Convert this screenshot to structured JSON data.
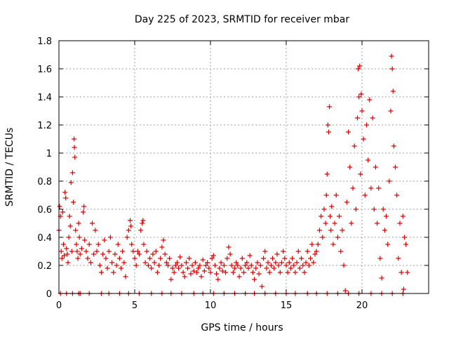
{
  "chart_data": {
    "type": "scatter",
    "title": "Day 225 of 2023, SRMTID for receiver mbar",
    "xlabel": "GPS time / hours",
    "ylabel": "SRMTID / TECUs",
    "xlim": [
      0,
      24.4
    ],
    "ylim": [
      0,
      1.8
    ],
    "xticks": [
      0,
      5,
      10,
      15,
      20
    ],
    "xtick_labels": [
      "0",
      "5",
      "10",
      "15",
      "20"
    ],
    "yticks": [
      0,
      0.2,
      0.4,
      0.6,
      0.8,
      1.0,
      1.2,
      1.4,
      1.6,
      1.8
    ],
    "ytick_labels": [
      "0",
      "0.2",
      "0.4",
      "0.6",
      "0.8",
      "1",
      "1.2",
      "1.4",
      "1.6",
      "1.8"
    ],
    "grid": true,
    "marker": "+",
    "color": "#e00000",
    "series": [
      {
        "name": "SRMTID",
        "points": [
          [
            0.0,
            0.45
          ],
          [
            0.05,
            0.62
          ],
          [
            0.1,
            0.55
          ],
          [
            0.15,
            0.3
          ],
          [
            0.2,
            0.25
          ],
          [
            0.25,
            0.58
          ],
          [
            0.3,
            0.35
          ],
          [
            0.35,
            0.27
          ],
          [
            0.4,
            0.72
          ],
          [
            0.45,
            0.68
          ],
          [
            0.5,
            0.32
          ],
          [
            0.55,
            0.28
          ],
          [
            0.6,
            0.22
          ],
          [
            0.65,
            0.4
          ],
          [
            0.7,
            0.55
          ],
          [
            0.75,
            0.48
          ],
          [
            0.8,
            0.79
          ],
          [
            0.85,
            0.3
          ],
          [
            0.9,
            0.86
          ],
          [
            0.95,
            0.65
          ],
          [
            1.0,
            1.1
          ],
          [
            1.02,
            1.04
          ],
          [
            1.05,
            0.97
          ],
          [
            1.1,
            0.45
          ],
          [
            1.15,
            0.35
          ],
          [
            1.2,
            0.3
          ],
          [
            1.25,
            0.25
          ],
          [
            1.3,
            0.5
          ],
          [
            1.35,
            0.4
          ],
          [
            1.4,
            0.28
          ],
          [
            1.5,
            0.32
          ],
          [
            1.6,
            0.58
          ],
          [
            1.65,
            0.62
          ],
          [
            1.7,
            0.38
          ],
          [
            1.8,
            0.3
          ],
          [
            1.9,
            0.25
          ],
          [
            2.0,
            0.35
          ],
          [
            2.1,
            0.22
          ],
          [
            2.2,
            0.5
          ],
          [
            2.3,
            0.28
          ],
          [
            2.4,
            0.45
          ],
          [
            2.5,
            0.3
          ],
          [
            2.6,
            0.35
          ],
          [
            2.7,
            0.2
          ],
          [
            2.8,
            0.15
          ],
          [
            2.9,
            0.28
          ],
          [
            3.0,
            0.38
          ],
          [
            3.1,
            0.25
          ],
          [
            3.2,
            0.18
          ],
          [
            3.3,
            0.3
          ],
          [
            3.4,
            0.4
          ],
          [
            3.5,
            0.22
          ],
          [
            3.6,
            0.15
          ],
          [
            3.7,
            0.28
          ],
          [
            3.8,
            0.2
          ],
          [
            3.9,
            0.35
          ],
          [
            4.0,
            0.25
          ],
          [
            4.1,
            0.18
          ],
          [
            4.2,
            0.3
          ],
          [
            4.3,
            0.22
          ],
          [
            4.4,
            0.12
          ],
          [
            4.5,
            0.4
          ],
          [
            4.6,
            0.45
          ],
          [
            4.7,
            0.52
          ],
          [
            4.75,
            0.48
          ],
          [
            4.8,
            0.35
          ],
          [
            4.9,
            0.3
          ],
          [
            5.0,
            0.25
          ],
          [
            5.1,
            0.2
          ],
          [
            5.2,
            0.3
          ],
          [
            5.3,
            0.28
          ],
          [
            5.4,
            0.45
          ],
          [
            5.5,
            0.5
          ],
          [
            5.55,
            0.52
          ],
          [
            5.6,
            0.35
          ],
          [
            5.7,
            0.22
          ],
          [
            5.8,
            0.3
          ],
          [
            5.9,
            0.2
          ],
          [
            6.0,
            0.25
          ],
          [
            6.1,
            0.18
          ],
          [
            6.2,
            0.28
          ],
          [
            6.3,
            0.22
          ],
          [
            6.4,
            0.3
          ],
          [
            6.5,
            0.15
          ],
          [
            6.6,
            0.2
          ],
          [
            6.7,
            0.25
          ],
          [
            6.8,
            0.33
          ],
          [
            6.9,
            0.38
          ],
          [
            7.0,
            0.28
          ],
          [
            7.1,
            0.22
          ],
          [
            7.2,
            0.2
          ],
          [
            7.3,
            0.25
          ],
          [
            7.4,
            0.1
          ],
          [
            7.5,
            0.18
          ],
          [
            7.6,
            0.15
          ],
          [
            7.7,
            0.2
          ],
          [
            7.8,
            0.22
          ],
          [
            7.9,
            0.18
          ],
          [
            8.0,
            0.26
          ],
          [
            8.1,
            0.2
          ],
          [
            8.2,
            0.15
          ],
          [
            8.3,
            0.12
          ],
          [
            8.4,
            0.22
          ],
          [
            8.5,
            0.18
          ],
          [
            8.6,
            0.25
          ],
          [
            8.7,
            0.14
          ],
          [
            8.8,
            0.2
          ],
          [
            8.9,
            0.16
          ],
          [
            9.0,
            0.22
          ],
          [
            9.1,
            0.15
          ],
          [
            9.2,
            0.18
          ],
          [
            9.3,
            0.2
          ],
          [
            9.4,
            0.12
          ],
          [
            9.5,
            0.24
          ],
          [
            9.6,
            0.16
          ],
          [
            9.7,
            0.2
          ],
          [
            9.8,
            0.22
          ],
          [
            9.9,
            0.18
          ],
          [
            10.0,
            0.15
          ],
          [
            10.1,
            0.25
          ],
          [
            10.2,
            0.27
          ],
          [
            10.3,
            0.2
          ],
          [
            10.4,
            0.14
          ],
          [
            10.5,
            0.1
          ],
          [
            10.6,
            0.18
          ],
          [
            10.7,
            0.22
          ],
          [
            10.8,
            0.16
          ],
          [
            10.9,
            0.2
          ],
          [
            11.0,
            0.15
          ],
          [
            11.1,
            0.25
          ],
          [
            11.2,
            0.33
          ],
          [
            11.3,
            0.28
          ],
          [
            11.4,
            0.2
          ],
          [
            11.5,
            0.15
          ],
          [
            11.6,
            0.18
          ],
          [
            11.7,
            0.22
          ],
          [
            11.8,
            0.2
          ],
          [
            11.9,
            0.12
          ],
          [
            12.0,
            0.18
          ],
          [
            12.1,
            0.25
          ],
          [
            12.2,
            0.15
          ],
          [
            12.3,
            0.2
          ],
          [
            12.4,
            0.22
          ],
          [
            12.5,
            0.18
          ],
          [
            12.6,
            0.27
          ],
          [
            12.7,
            0.2
          ],
          [
            12.8,
            0.15
          ],
          [
            12.9,
            0.1
          ],
          [
            13.0,
            0.18
          ],
          [
            13.1,
            0.22
          ],
          [
            13.2,
            0.14
          ],
          [
            13.3,
            0.2
          ],
          [
            13.4,
            0.05
          ],
          [
            13.5,
            0.25
          ],
          [
            13.6,
            0.3
          ],
          [
            13.7,
            0.18
          ],
          [
            13.8,
            0.22
          ],
          [
            13.9,
            0.15
          ],
          [
            14.0,
            0.2
          ],
          [
            14.1,
            0.25
          ],
          [
            14.2,
            0.18
          ],
          [
            14.3,
            0.22
          ],
          [
            14.4,
            0.28
          ],
          [
            14.5,
            0.2
          ],
          [
            14.6,
            0.15
          ],
          [
            14.7,
            0.22
          ],
          [
            14.8,
            0.3
          ],
          [
            14.9,
            0.25
          ],
          [
            15.0,
            0.2
          ],
          [
            15.1,
            0.15
          ],
          [
            15.2,
            0.22
          ],
          [
            15.3,
            0.18
          ],
          [
            15.4,
            0.25
          ],
          [
            15.5,
            0.2
          ],
          [
            15.6,
            0.15
          ],
          [
            15.7,
            0.22
          ],
          [
            15.8,
            0.3
          ],
          [
            15.9,
            0.18
          ],
          [
            16.0,
            0.25
          ],
          [
            16.1,
            0.2
          ],
          [
            16.2,
            0.15
          ],
          [
            16.3,
            0.22
          ],
          [
            16.4,
            0.3
          ],
          [
            16.5,
            0.2
          ],
          [
            16.6,
            0.25
          ],
          [
            16.7,
            0.35
          ],
          [
            16.8,
            0.22
          ],
          [
            16.9,
            0.28
          ],
          [
            17.0,
            0.3
          ],
          [
            17.1,
            0.35
          ],
          [
            17.2,
            0.45
          ],
          [
            17.3,
            0.55
          ],
          [
            17.4,
            0.4
          ],
          [
            17.5,
            0.6
          ],
          [
            17.6,
            0.5
          ],
          [
            17.65,
            0.7
          ],
          [
            17.7,
            0.85
          ],
          [
            17.75,
            1.2
          ],
          [
            17.8,
            1.15
          ],
          [
            17.85,
            1.33
          ],
          [
            17.9,
            0.55
          ],
          [
            17.95,
            0.45
          ],
          [
            18.0,
            0.62
          ],
          [
            18.1,
            0.35
          ],
          [
            18.2,
            0.5
          ],
          [
            18.3,
            0.7
          ],
          [
            18.4,
            0.4
          ],
          [
            18.5,
            0.55
          ],
          [
            18.6,
            0.3
          ],
          [
            18.7,
            0.45
          ],
          [
            18.8,
            0.2
          ],
          [
            18.9,
            0.02
          ],
          [
            19.0,
            0.65
          ],
          [
            19.1,
            1.15
          ],
          [
            19.2,
            0.9
          ],
          [
            19.3,
            0.5
          ],
          [
            19.4,
            0.75
          ],
          [
            19.5,
            1.05
          ],
          [
            19.6,
            0.6
          ],
          [
            19.7,
            1.25
          ],
          [
            19.75,
            1.6
          ],
          [
            19.8,
            1.4
          ],
          [
            19.85,
            1.62
          ],
          [
            19.9,
            0.85
          ],
          [
            19.95,
            1.42
          ],
          [
            20.0,
            1.3
          ],
          [
            20.1,
            1.1
          ],
          [
            20.2,
            0.7
          ],
          [
            20.3,
            1.2
          ],
          [
            20.4,
            0.95
          ],
          [
            20.5,
            1.38
          ],
          [
            20.6,
            0.75
          ],
          [
            20.7,
            1.25
          ],
          [
            20.8,
            0.6
          ],
          [
            20.9,
            0.9
          ],
          [
            21.0,
            0.5
          ],
          [
            21.1,
            0.75
          ],
          [
            21.2,
            0.25
          ],
          [
            21.3,
            0.11
          ],
          [
            21.4,
            0.6
          ],
          [
            21.5,
            0.45
          ],
          [
            21.6,
            0.55
          ],
          [
            21.7,
            0.35
          ],
          [
            21.8,
            0.8
          ],
          [
            21.9,
            1.3
          ],
          [
            21.95,
            1.69
          ],
          [
            22.0,
            1.6
          ],
          [
            22.05,
            1.44
          ],
          [
            22.1,
            1.05
          ],
          [
            22.2,
            0.9
          ],
          [
            22.3,
            0.7
          ],
          [
            22.4,
            0.25
          ],
          [
            22.5,
            0.5
          ],
          [
            22.6,
            0.15
          ],
          [
            22.7,
            0.55
          ],
          [
            22.75,
            0.03
          ],
          [
            22.8,
            0.4
          ],
          [
            22.9,
            0.35
          ],
          [
            23.0,
            0.15
          ],
          [
            0.1,
            0.0
          ],
          [
            0.5,
            0.0
          ],
          [
            0.9,
            0.0
          ],
          [
            1.3,
            0.0
          ],
          [
            1.4,
            0.0
          ],
          [
            2.0,
            0.0
          ],
          [
            2.8,
            0.0
          ],
          [
            3.3,
            0.0
          ],
          [
            4.0,
            0.0
          ],
          [
            4.6,
            0.0
          ],
          [
            5.3,
            0.0
          ],
          [
            6.1,
            0.0
          ],
          [
            6.8,
            0.0
          ],
          [
            7.4,
            0.0
          ],
          [
            8.1,
            0.0
          ],
          [
            8.9,
            0.0
          ],
          [
            9.5,
            0.0
          ],
          [
            10.2,
            0.0
          ],
          [
            10.9,
            0.0
          ],
          [
            11.6,
            0.0
          ],
          [
            12.3,
            0.0
          ],
          [
            12.9,
            0.0
          ],
          [
            13.6,
            0.0
          ],
          [
            14.3,
            0.0
          ],
          [
            15.0,
            0.0
          ],
          [
            15.6,
            0.0
          ],
          [
            16.4,
            0.0
          ],
          [
            17.0,
            0.0
          ],
          [
            17.7,
            0.0
          ],
          [
            18.4,
            0.0
          ],
          [
            19.1,
            0.0
          ],
          [
            19.8,
            0.0
          ],
          [
            20.6,
            0.0
          ],
          [
            21.3,
            0.0
          ],
          [
            22.0,
            0.0
          ],
          [
            22.7,
            0.0
          ]
        ]
      }
    ]
  }
}
